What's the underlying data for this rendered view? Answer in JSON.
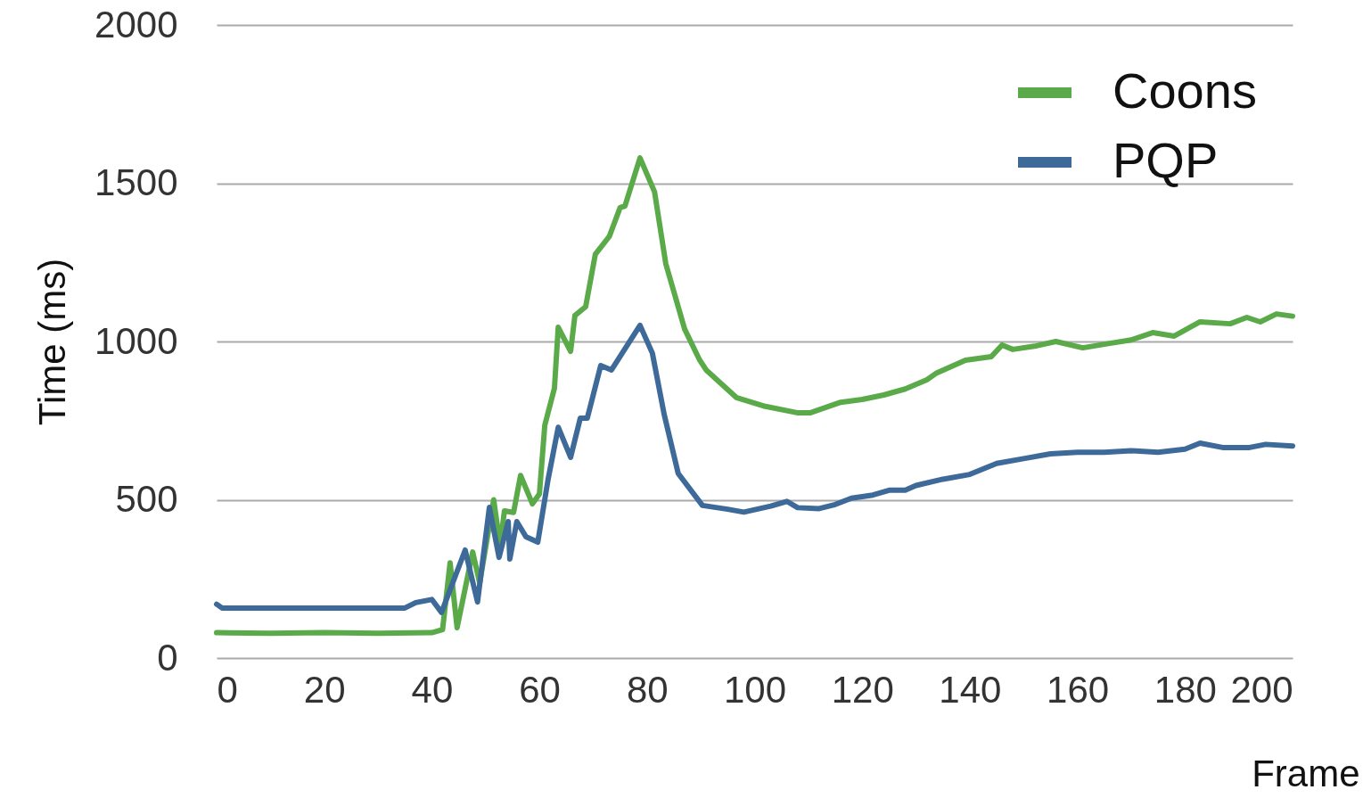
{
  "chart_data": {
    "type": "line",
    "xlabel": "Frame",
    "ylabel": "Time (ms)",
    "xlim": [
      0,
      200
    ],
    "xticks": [
      0,
      20,
      40,
      60,
      80,
      100,
      120,
      140,
      160,
      180,
      200
    ],
    "ylim": [
      0,
      2000
    ],
    "yticks": [
      0,
      500,
      1000,
      1500,
      2000
    ],
    "grid": "y",
    "legend": "top right",
    "marker": "none",
    "line_style": "solid",
    "series": [
      {
        "name": "Coons",
        "color": "#5aaa4a",
        "x": [
          0,
          10,
          20,
          30,
          40,
          42,
          43.4,
          44.7,
          47.6,
          48.9,
          51.5,
          52.7,
          53.5,
          55.2,
          56.5,
          58.7,
          60,
          61,
          62.8,
          63.5,
          65.8,
          66.6,
          68.6,
          70.4,
          73,
          75,
          75.9,
          78.7,
          81.4,
          83.5,
          87,
          89.8,
          91,
          96.6,
          102,
          107.9,
          110.4,
          116,
          120,
          124,
          128,
          132,
          133.7,
          139.2,
          144,
          146,
          148,
          152,
          156,
          161,
          166,
          170,
          174,
          178,
          182.8,
          188.4,
          191.5,
          194,
          197,
          200
        ],
        "values": [
          80,
          78,
          80,
          78,
          80,
          90,
          301,
          96,
          335,
          237,
          500,
          355,
          465,
          460,
          577,
          487,
          518,
          735,
          853,
          1045,
          969,
          1082,
          1110,
          1276,
          1332,
          1423,
          1428,
          1580,
          1473,
          1245,
          1039,
          941,
          910,
          823,
          795,
          775,
          775,
          808,
          817,
          831,
          850,
          879,
          899,
          941,
          952,
          989,
          975,
          985,
          1000,
          980,
          994,
          1005,
          1028,
          1017,
          1062,
          1056,
          1076,
          1062,
          1087,
          1080
        ]
      },
      {
        "name": "PQP",
        "color": "#3e6a9a",
        "x": [
          0,
          1,
          10,
          20,
          30,
          35,
          37,
          40,
          41.8,
          46.2,
          48.5,
          50.7,
          52.5,
          54.2,
          54.5,
          55.8,
          57.5,
          59.7,
          61.6,
          63.5,
          65.8,
          67.6,
          68.9,
          71.4,
          73.4,
          75.2,
          78.7,
          81,
          83.2,
          85.8,
          90.3,
          95,
          98,
          103,
          106,
          108,
          112,
          115,
          118,
          122,
          125,
          128,
          130,
          135,
          140,
          145,
          150,
          155,
          160,
          165,
          170,
          175,
          180,
          182.8,
          187,
          192,
          195,
          200
        ],
        "values": [
          170,
          158,
          158,
          158,
          158,
          158,
          175,
          185,
          144,
          341,
          177,
          476,
          318,
          431,
          313,
          431,
          383,
          366,
          563,
          729,
          634,
          758,
          758,
          924,
          910,
          958,
          1051,
          963,
          769,
          583,
          482,
          470,
          461,
          480,
          495,
          475,
          472,
          485,
          505,
          515,
          530,
          530,
          545,
          565,
          580,
          615,
          630,
          645,
          650,
          650,
          655,
          650,
          660,
          679,
          665,
          665,
          675,
          670
        ]
      }
    ]
  }
}
